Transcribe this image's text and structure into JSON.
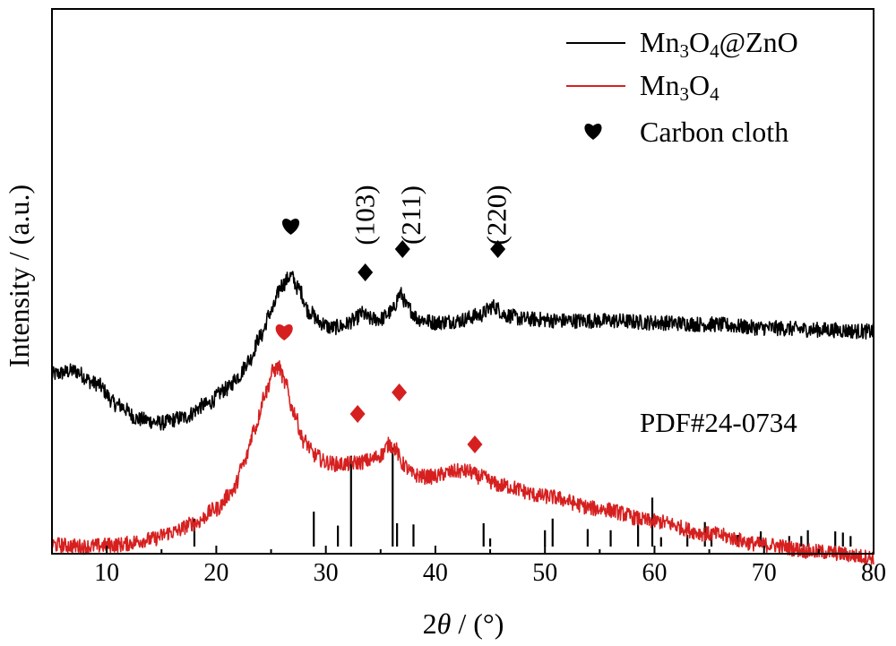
{
  "chart_data": {
    "type": "line",
    "xlabel_prefix": "2",
    "xlabel_theta": "θ",
    "xlabel_suffix": " / (°)",
    "ylabel": "Intensity / (a.u.)",
    "xlim": [
      5,
      80
    ],
    "xticks": [
      10,
      20,
      30,
      40,
      50,
      60,
      70,
      80
    ],
    "legend": {
      "placement": "top-right",
      "entries": [
        {
          "key": "mn3o4_zno",
          "parts": [
            "Mn",
            "3",
            "O",
            "4",
            "@ZnO"
          ],
          "color": "#000000",
          "marker": "line"
        },
        {
          "key": "mn3o4",
          "parts": [
            "Mn",
            "3",
            "O",
            "4",
            ""
          ],
          "color": "#d62020",
          "marker": "line"
        },
        {
          "key": "carbon",
          "label": "Carbon cloth",
          "color": "#000000",
          "marker": "heart"
        }
      ]
    },
    "series": [
      {
        "key": "mn3o4_zno",
        "color": "#000000",
        "points": [
          [
            5,
            0.55
          ],
          [
            7,
            0.57
          ],
          [
            9,
            0.5
          ],
          [
            11,
            0.38
          ],
          [
            13,
            0.3
          ],
          [
            15,
            0.28
          ],
          [
            17,
            0.31
          ],
          [
            19,
            0.38
          ],
          [
            21,
            0.47
          ],
          [
            22,
            0.54
          ],
          [
            23,
            0.63
          ],
          [
            24,
            0.76
          ],
          [
            25,
            0.9
          ],
          [
            26,
            1.05
          ],
          [
            26.8,
            1.1
          ],
          [
            27.5,
            1.03
          ],
          [
            28.5,
            0.9
          ],
          [
            29.5,
            0.84
          ],
          [
            30.5,
            0.81
          ],
          [
            31.5,
            0.82
          ],
          [
            32.5,
            0.85
          ],
          [
            33.3,
            0.89
          ],
          [
            34,
            0.86
          ],
          [
            35,
            0.86
          ],
          [
            36,
            0.9
          ],
          [
            36.8,
            1.0
          ],
          [
            37.5,
            0.92
          ],
          [
            38.5,
            0.86
          ],
          [
            40,
            0.84
          ],
          [
            42,
            0.85
          ],
          [
            44,
            0.88
          ],
          [
            45.3,
            0.93
          ],
          [
            46.5,
            0.88
          ],
          [
            48,
            0.86
          ],
          [
            52,
            0.85
          ],
          [
            56,
            0.85
          ],
          [
            60,
            0.84
          ],
          [
            65,
            0.83
          ],
          [
            70,
            0.81
          ],
          [
            75,
            0.8
          ],
          [
            80,
            0.79
          ]
        ]
      },
      {
        "key": "mn3o4",
        "color": "#d62020",
        "points": [
          [
            5,
            -0.4
          ],
          [
            8,
            -0.41
          ],
          [
            11,
            -0.4
          ],
          [
            14,
            -0.37
          ],
          [
            16,
            -0.33
          ],
          [
            18,
            -0.28
          ],
          [
            20,
            -0.2
          ],
          [
            21.5,
            -0.1
          ],
          [
            22.5,
            0.05
          ],
          [
            23.5,
            0.25
          ],
          [
            24.5,
            0.45
          ],
          [
            25.2,
            0.57
          ],
          [
            25.7,
            0.59
          ],
          [
            26.3,
            0.5
          ],
          [
            27,
            0.35
          ],
          [
            28,
            0.18
          ],
          [
            29,
            0.1
          ],
          [
            30,
            0.06
          ],
          [
            31,
            0.05
          ],
          [
            32,
            0.05
          ],
          [
            33,
            0.06
          ],
          [
            34,
            0.07
          ],
          [
            35,
            0.1
          ],
          [
            35.8,
            0.16
          ],
          [
            36.3,
            0.14
          ],
          [
            37,
            0.05
          ],
          [
            38,
            -0.01
          ],
          [
            39,
            -0.02
          ],
          [
            40,
            -0.02
          ],
          [
            41,
            0.0
          ],
          [
            42,
            0.01
          ],
          [
            43,
            0.01
          ],
          [
            44,
            -0.02
          ],
          [
            46,
            -0.07
          ],
          [
            50,
            -0.13
          ],
          [
            55,
            -0.2
          ],
          [
            60,
            -0.27
          ],
          [
            65,
            -0.34
          ],
          [
            70,
            -0.4
          ],
          [
            75,
            -0.44
          ],
          [
            80,
            -0.47
          ]
        ]
      }
    ],
    "reference": {
      "label": "PDF#24-0734",
      "lines": [
        [
          18,
          0.24
        ],
        [
          28.9,
          0.3
        ],
        [
          31.1,
          0.18
        ],
        [
          32.3,
          0.78
        ],
        [
          36.1,
          0.85
        ],
        [
          36.5,
          0.2
        ],
        [
          38,
          0.19
        ],
        [
          44.4,
          0.2
        ],
        [
          45,
          0.07
        ],
        [
          50,
          0.14
        ],
        [
          50.7,
          0.24
        ],
        [
          53.9,
          0.15
        ],
        [
          56,
          0.14
        ],
        [
          58.5,
          0.26
        ],
        [
          59.8,
          0.42
        ],
        [
          60.6,
          0.08
        ],
        [
          63,
          0.1
        ],
        [
          64.6,
          0.21
        ],
        [
          65.2,
          0.11
        ],
        [
          67.6,
          0.1
        ],
        [
          69.7,
          0.13
        ],
        [
          72.3,
          0.09
        ],
        [
          73.4,
          0.09
        ],
        [
          74,
          0.14
        ],
        [
          76.5,
          0.13
        ],
        [
          77.2,
          0.12
        ],
        [
          77.9,
          0.09
        ]
      ]
    },
    "annotations": [
      {
        "x": 26.8,
        "y": 1.38,
        "marker": "heart",
        "color": "#000000"
      },
      {
        "x": 33.6,
        "y": 1.12,
        "marker": "diamond",
        "color": "#000000"
      },
      {
        "x": 37.0,
        "y": 1.25,
        "marker": "diamond",
        "color": "#000000"
      },
      {
        "x": 45.7,
        "y": 1.25,
        "marker": "diamond",
        "color": "#000000"
      },
      {
        "x": 26.2,
        "y": 0.79,
        "marker": "heart",
        "color": "#d62020"
      },
      {
        "x": 32.9,
        "y": 0.33,
        "marker": "diamond",
        "color": "#d62020"
      },
      {
        "x": 36.7,
        "y": 0.45,
        "marker": "diamond",
        "color": "#d62020"
      },
      {
        "x": 43.6,
        "y": 0.16,
        "marker": "diamond",
        "color": "#d62020"
      }
    ],
    "hkl_labels": [
      {
        "text": "(103)",
        "x": 33.6
      },
      {
        "text": "(211)",
        "x": 37.8
      },
      {
        "text": "(220)",
        "x": 45.6
      }
    ]
  }
}
